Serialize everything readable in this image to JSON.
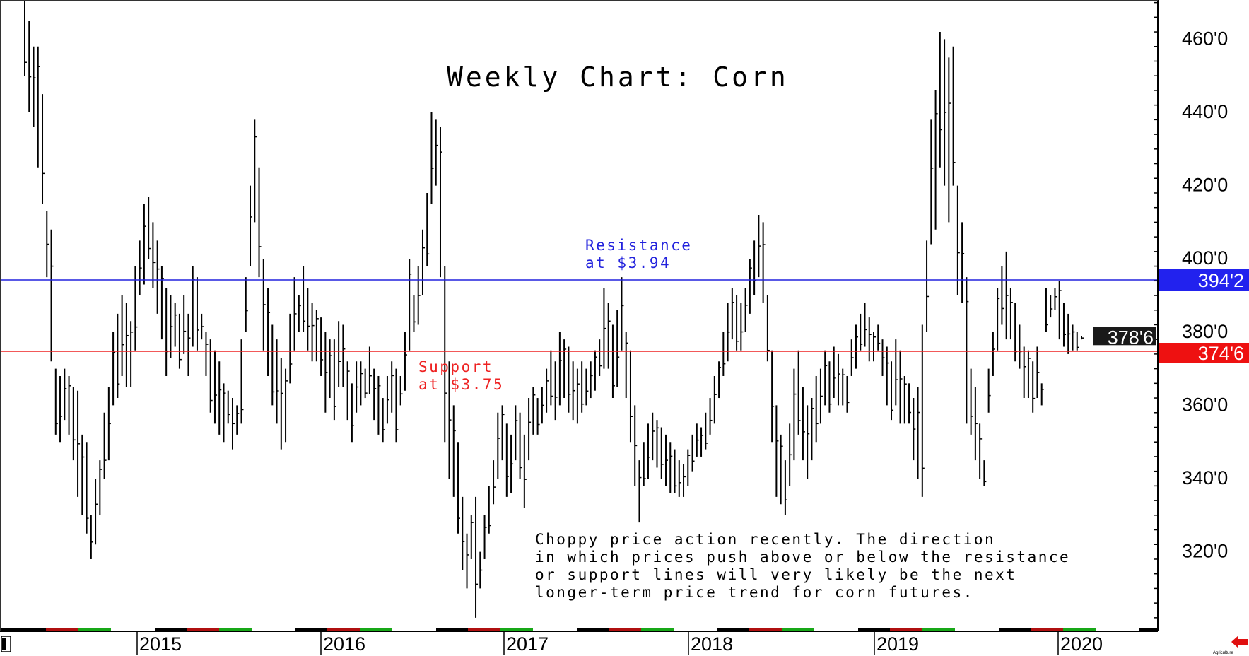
{
  "chart_data": {
    "type": "ohlc-bar",
    "title": "Weekly Chart: Corn",
    "y_ticks": [
      "460'0",
      "440'0",
      "420'0",
      "400'0",
      "380'0",
      "360'0",
      "340'0",
      "320'0"
    ],
    "y_tick_values": [
      460,
      440,
      420,
      400,
      380,
      360,
      340,
      320
    ],
    "ylim": [
      300,
      472
    ],
    "x_ticks": [
      "2015",
      "2016",
      "2017",
      "2018",
      "2019",
      "2020"
    ],
    "grid": false,
    "lines": [
      {
        "name": "resistance",
        "value": 394.25,
        "color": "#2222dd",
        "label": "394'2",
        "annotation": [
          "Resistance",
          "at $3.94"
        ]
      },
      {
        "name": "support",
        "value": 374.75,
        "color": "#ee2222",
        "label": "374'6",
        "annotation": [
          "Support",
          "at $3.75"
        ]
      }
    ],
    "last_price": {
      "value": 378.75,
      "label": "378'6",
      "color": "#1a1a1a"
    },
    "note": [
      "Choppy price action recently. The direction",
      "in which prices push above or below the resistance",
      "or support lines will very likely be the next",
      "longer-term price trend for corn futures."
    ],
    "season_colors": [
      "#000000",
      "#b01010",
      "#18a818",
      "#ffffff"
    ],
    "bars_high_low": [
      [
        472,
        450
      ],
      [
        465,
        440
      ],
      [
        458,
        436
      ],
      [
        458,
        425
      ],
      [
        445,
        415
      ],
      [
        413,
        395
      ],
      [
        408,
        372
      ],
      [
        370,
        352
      ],
      [
        368,
        350
      ],
      [
        370,
        356
      ],
      [
        368,
        352
      ],
      [
        365,
        345
      ],
      [
        364,
        335
      ],
      [
        352,
        330
      ],
      [
        350,
        325
      ],
      [
        330,
        318
      ],
      [
        340,
        322
      ],
      [
        345,
        330
      ],
      [
        358,
        340
      ],
      [
        365,
        345
      ],
      [
        380,
        360
      ],
      [
        385,
        362
      ],
      [
        390,
        368
      ],
      [
        388,
        365
      ],
      [
        383,
        365
      ],
      [
        398,
        375
      ],
      [
        405,
        390
      ],
      [
        415,
        393
      ],
      [
        417,
        400
      ],
      [
        410,
        392
      ],
      [
        405,
        385
      ],
      [
        398,
        378
      ],
      [
        392,
        368
      ],
      [
        390,
        373
      ],
      [
        388,
        376
      ],
      [
        385,
        370
      ],
      [
        390,
        374
      ],
      [
        385,
        368
      ],
      [
        398,
        376
      ],
      [
        395,
        375
      ],
      [
        385,
        378
      ],
      [
        380,
        368
      ],
      [
        378,
        358
      ],
      [
        375,
        355
      ],
      [
        372,
        352
      ],
      [
        366,
        350
      ],
      [
        364,
        355
      ],
      [
        362,
        348
      ],
      [
        360,
        352
      ],
      [
        378,
        355
      ],
      [
        395,
        380
      ],
      [
        420,
        398
      ],
      [
        438,
        410
      ],
      [
        425,
        395
      ],
      [
        400,
        375
      ],
      [
        392,
        368
      ],
      [
        382,
        360
      ],
      [
        378,
        355
      ],
      [
        373,
        348
      ],
      [
        370,
        350
      ],
      [
        385,
        366
      ],
      [
        395,
        375
      ],
      [
        390,
        380
      ],
      [
        398,
        380
      ],
      [
        392,
        375
      ],
      [
        388,
        372
      ],
      [
        386,
        372
      ],
      [
        384,
        368
      ],
      [
        380,
        358
      ],
      [
        378,
        362
      ],
      [
        378,
        356
      ],
      [
        383,
        365
      ],
      [
        382,
        365
      ],
      [
        372,
        356
      ],
      [
        366,
        350
      ],
      [
        372,
        358
      ],
      [
        372,
        360
      ],
      [
        370,
        362
      ],
      [
        376,
        363
      ],
      [
        370,
        356
      ],
      [
        368,
        352
      ],
      [
        362,
        350
      ],
      [
        368,
        355
      ],
      [
        372,
        358
      ],
      [
        370,
        350
      ],
      [
        368,
        360
      ],
      [
        380,
        364
      ],
      [
        400,
        375
      ],
      [
        390,
        380
      ],
      [
        398,
        382
      ],
      [
        408,
        390
      ],
      [
        418,
        398
      ],
      [
        440,
        415
      ],
      [
        438,
        420
      ],
      [
        436,
        395
      ],
      [
        398,
        350
      ],
      [
        372,
        340
      ],
      [
        360,
        335
      ],
      [
        350,
        325
      ],
      [
        335,
        315
      ],
      [
        325,
        310
      ],
      [
        330,
        318
      ],
      [
        335,
        302
      ],
      [
        320,
        310
      ],
      [
        330,
        318
      ],
      [
        338,
        325
      ],
      [
        345,
        333
      ],
      [
        358,
        340
      ],
      [
        360,
        345
      ],
      [
        355,
        335
      ],
      [
        352,
        336
      ],
      [
        360,
        345
      ],
      [
        358,
        340
      ],
      [
        352,
        332
      ],
      [
        362,
        345
      ],
      [
        365,
        352
      ],
      [
        362,
        352
      ],
      [
        365,
        355
      ],
      [
        370,
        358
      ],
      [
        375,
        360
      ],
      [
        372,
        356
      ],
      [
        380,
        360
      ],
      [
        378,
        362
      ],
      [
        376,
        358
      ],
      [
        372,
        356
      ],
      [
        370,
        355
      ],
      [
        372,
        358
      ],
      [
        370,
        360
      ],
      [
        372,
        362
      ],
      [
        375,
        364
      ],
      [
        378,
        368
      ],
      [
        392,
        370
      ],
      [
        388,
        370
      ],
      [
        382,
        362
      ],
      [
        386,
        365
      ],
      [
        395,
        375
      ],
      [
        380,
        362
      ],
      [
        375,
        350
      ],
      [
        360,
        338
      ],
      [
        345,
        328
      ],
      [
        350,
        338
      ],
      [
        355,
        340
      ],
      [
        358,
        345
      ],
      [
        356,
        343
      ],
      [
        354,
        340
      ],
      [
        352,
        338
      ],
      [
        350,
        336
      ],
      [
        348,
        336
      ],
      [
        345,
        335
      ],
      [
        344,
        335
      ],
      [
        348,
        338
      ],
      [
        352,
        342
      ],
      [
        355,
        346
      ],
      [
        354,
        346
      ],
      [
        358,
        348
      ],
      [
        362,
        352
      ],
      [
        368,
        355
      ],
      [
        372,
        362
      ],
      [
        380,
        368
      ],
      [
        388,
        372
      ],
      [
        392,
        378
      ],
      [
        390,
        375
      ],
      [
        388,
        375
      ],
      [
        392,
        380
      ],
      [
        400,
        385
      ],
      [
        405,
        390
      ],
      [
        412,
        395
      ],
      [
        410,
        388
      ],
      [
        390,
        372
      ],
      [
        375,
        350
      ],
      [
        360,
        335
      ],
      [
        352,
        333
      ],
      [
        345,
        330
      ],
      [
        355,
        338
      ],
      [
        370,
        345
      ],
      [
        375,
        352
      ],
      [
        365,
        345
      ],
      [
        360,
        340
      ],
      [
        362,
        345
      ],
      [
        368,
        350
      ],
      [
        370,
        355
      ],
      [
        375,
        360
      ],
      [
        372,
        358
      ],
      [
        376,
        362
      ],
      [
        374,
        360
      ],
      [
        370,
        360
      ],
      [
        368,
        358
      ],
      [
        378,
        368
      ],
      [
        382,
        370
      ],
      [
        385,
        375
      ],
      [
        388,
        376
      ],
      [
        384,
        372
      ],
      [
        380,
        372
      ],
      [
        382,
        375
      ],
      [
        378,
        368
      ],
      [
        376,
        360
      ],
      [
        372,
        356
      ],
      [
        378,
        360
      ],
      [
        375,
        355
      ],
      [
        368,
        355
      ],
      [
        366,
        355
      ],
      [
        362,
        345
      ],
      [
        365,
        340
      ],
      [
        382,
        335
      ],
      [
        405,
        380
      ],
      [
        438,
        404
      ],
      [
        446,
        408
      ],
      [
        462,
        425
      ],
      [
        460,
        420
      ],
      [
        455,
        410
      ],
      [
        458,
        420
      ],
      [
        420,
        390
      ],
      [
        410,
        388
      ],
      [
        395,
        355
      ],
      [
        370,
        352
      ],
      [
        365,
        345
      ],
      [
        355,
        340
      ],
      [
        345,
        338
      ],
      [
        370,
        358
      ],
      [
        380,
        368
      ],
      [
        392,
        375
      ],
      [
        398,
        382
      ],
      [
        402,
        378
      ],
      [
        392,
        378
      ],
      [
        388,
        372
      ],
      [
        382,
        370
      ],
      [
        376,
        362
      ],
      [
        375,
        362
      ],
      [
        372,
        358
      ],
      [
        376,
        362
      ],
      [
        366,
        360
      ],
      [
        392,
        380
      ],
      [
        390,
        384
      ],
      [
        392,
        386
      ],
      [
        394,
        378
      ],
      [
        388,
        376
      ],
      [
        385,
        374
      ],
      [
        382,
        375
      ],
      [
        380,
        375
      ],
      [
        379,
        378
      ]
    ]
  },
  "footer": {
    "brand": "Agriculture"
  }
}
